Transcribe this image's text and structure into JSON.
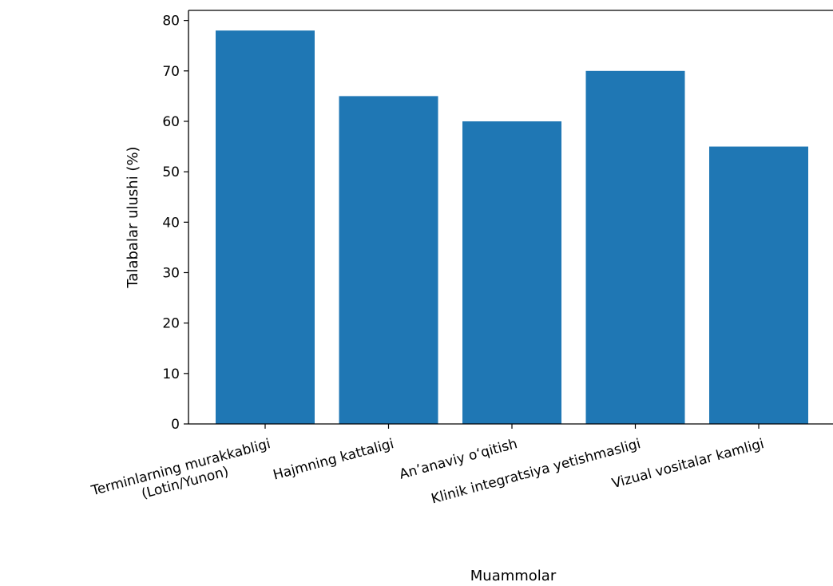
{
  "chart_data": {
    "type": "bar",
    "title": "",
    "xlabel": "Muammolar",
    "ylabel": "Talabalar ulushi (%)",
    "categories": [
      "Terminlarning murakkabligi\n(Lotin/Yunon)",
      "Hajmning kattaligi",
      "An’anaviy o‘qitish",
      "Klinik integratsiya yetishmasligi",
      "Vizual vositalar kamligi"
    ],
    "values": [
      78,
      65,
      60,
      70,
      55
    ],
    "ylim": [
      0,
      82
    ],
    "yticks": [
      0,
      10,
      20,
      30,
      40,
      50,
      60,
      70,
      80
    ],
    "grid": false,
    "bar_color": "#1f77b4"
  }
}
